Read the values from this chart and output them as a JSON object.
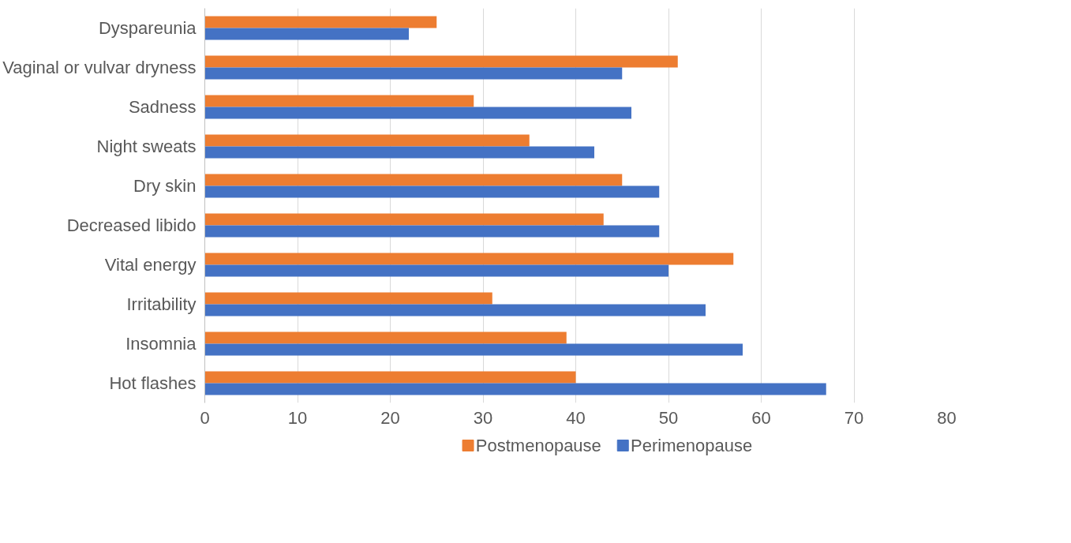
{
  "chart_data": {
    "type": "bar",
    "orientation": "horizontal",
    "categories": [
      "Dyspareunia",
      "Vaginal or vulvar dryness",
      "Sadness",
      "Night sweats",
      "Dry skin",
      "Decreased libido",
      "Vital energy",
      "Irritability",
      "Insomnia",
      "Hot flashes"
    ],
    "series": [
      {
        "name": "Postmenopause",
        "color": "#ed7d31",
        "values": [
          25,
          51,
          29,
          35,
          45,
          43,
          57,
          31,
          39,
          40
        ]
      },
      {
        "name": "Perimenopause",
        "color": "#4472c4",
        "values": [
          22,
          45,
          46,
          42,
          49,
          49,
          50,
          54,
          58,
          67
        ]
      }
    ],
    "xlim": [
      0,
      80
    ],
    "xticks": [
      0,
      10,
      20,
      30,
      40,
      50,
      60,
      70,
      80
    ],
    "grid": "x",
    "legend": "bottom"
  }
}
